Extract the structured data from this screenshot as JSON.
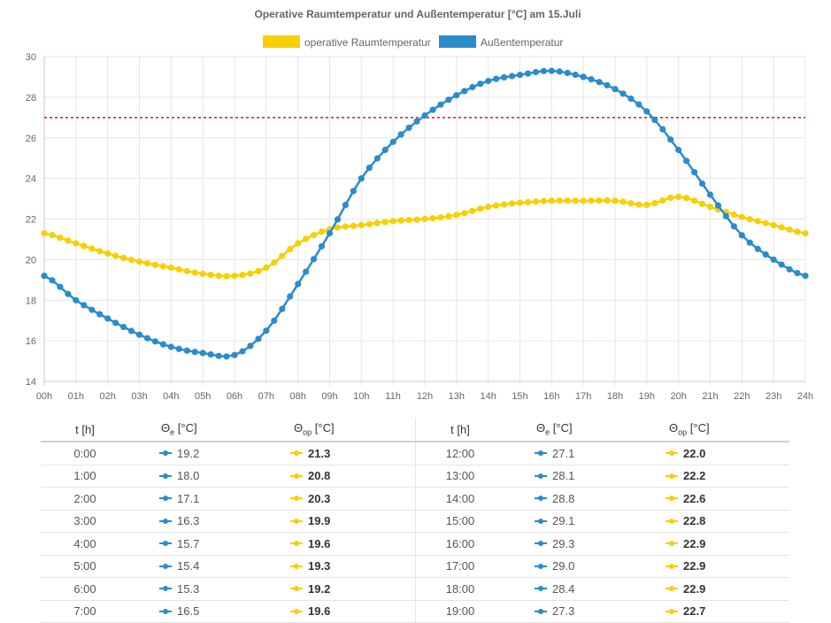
{
  "chart_data": {
    "type": "line",
    "title": "Operative Raumtemperatur und Außentemperatur [°C] am 15.Juli",
    "ylim": [
      14,
      30
    ],
    "yticks": [
      14,
      16,
      18,
      20,
      22,
      24,
      26,
      28,
      30
    ],
    "xlim": [
      0,
      24
    ],
    "xtick_labels": [
      "00h",
      "01h",
      "02h",
      "03h",
      "04h",
      "05h",
      "06h",
      "07h",
      "08h",
      "09h",
      "10h",
      "11h",
      "12h",
      "13h",
      "14h",
      "15h",
      "16h",
      "17h",
      "18h",
      "19h",
      "20h",
      "21h",
      "22h",
      "23h",
      "24h"
    ],
    "threshold": 27,
    "grid": true,
    "legend_position": "top-center",
    "x": [
      0,
      1,
      2,
      3,
      4,
      5,
      6,
      7,
      8,
      9,
      10,
      11,
      12,
      13,
      14,
      15,
      16,
      17,
      18,
      19,
      20,
      21,
      22,
      23,
      24
    ],
    "series": [
      {
        "name": "operative Raumtemperatur",
        "color": "#f7d000",
        "values": [
          21.3,
          20.8,
          20.3,
          19.9,
          19.6,
          19.3,
          19.2,
          19.6,
          20.8,
          21.5,
          21.7,
          21.9,
          22.0,
          22.2,
          22.6,
          22.8,
          22.9,
          22.9,
          22.9,
          22.7,
          23.1,
          22.6,
          22.1,
          21.7,
          21.3
        ]
      },
      {
        "name": "Außentemperatur",
        "color": "#2a8ccc",
        "values": [
          19.2,
          18.0,
          17.1,
          16.3,
          15.7,
          15.4,
          15.3,
          16.5,
          18.8,
          21.3,
          24.0,
          25.8,
          27.1,
          28.1,
          28.8,
          29.1,
          29.3,
          29.0,
          28.4,
          27.3,
          25.4,
          23.2,
          21.2,
          20.0,
          19.2
        ]
      }
    ]
  },
  "table": {
    "headers": {
      "t": "t [h]",
      "e_main": "Θ",
      "e_sub": "e",
      "e_unit": " [°C]",
      "op_main": "Θ",
      "op_sub": "op",
      "op_unit": " [°C]"
    },
    "left_rows": [
      {
        "t": "0:00",
        "e": "19.2",
        "op": "21.3"
      },
      {
        "t": "1:00",
        "e": "18.0",
        "op": "20.8"
      },
      {
        "t": "2:00",
        "e": "17.1",
        "op": "20.3"
      },
      {
        "t": "3:00",
        "e": "16.3",
        "op": "19.9"
      },
      {
        "t": "4:00",
        "e": "15.7",
        "op": "19.6"
      },
      {
        "t": "5:00",
        "e": "15.4",
        "op": "19.3"
      },
      {
        "t": "6:00",
        "e": "15.3",
        "op": "19.2"
      },
      {
        "t": "7:00",
        "e": "16.5",
        "op": "19.6"
      }
    ],
    "right_rows": [
      {
        "t": "12:00",
        "e": "27.1",
        "op": "22.0"
      },
      {
        "t": "13:00",
        "e": "28.1",
        "op": "22.2"
      },
      {
        "t": "14:00",
        "e": "28.8",
        "op": "22.6"
      },
      {
        "t": "15:00",
        "e": "29.1",
        "op": "22.8"
      },
      {
        "t": "16:00",
        "e": "29.3",
        "op": "22.9"
      },
      {
        "t": "17:00",
        "e": "29.0",
        "op": "22.9"
      },
      {
        "t": "18:00",
        "e": "28.4",
        "op": "22.9"
      },
      {
        "t": "19:00",
        "e": "27.3",
        "op": "22.7"
      }
    ]
  }
}
